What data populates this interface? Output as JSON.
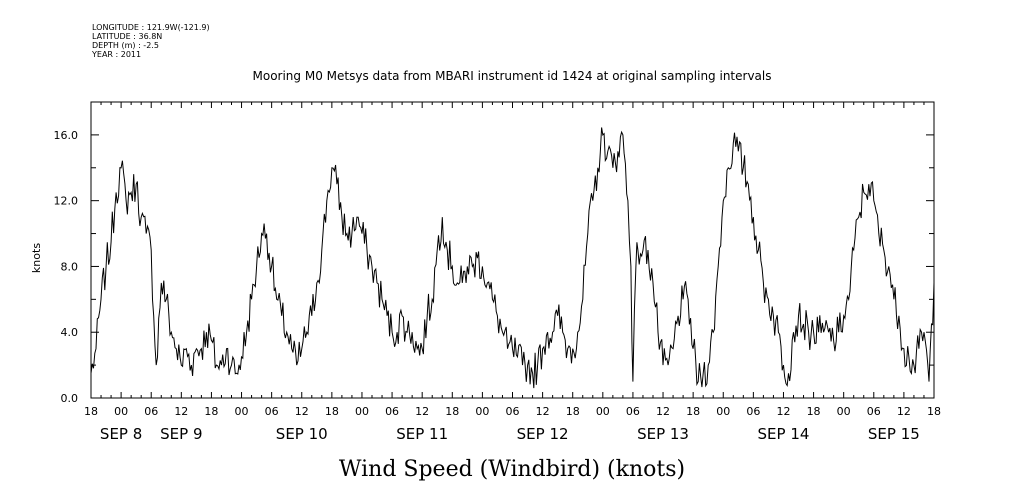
{
  "header": {
    "meta_lines": [
      "LONGITUDE : 121.9W(-121.9)",
      "LATITUDE : 36.8N",
      "DEPTH (m) : -2.5",
      "YEAR : 2011"
    ],
    "title": "Mooring M0 Metsys data from MBARI instrument id 1424 at original sampling intervals"
  },
  "chart_data": {
    "type": "line",
    "title": "Mooring M0 Metsys data from MBARI instrument id 1424 at original sampling intervals",
    "xlabel": "Wind Speed (Windbird) (knots)",
    "ylabel": "knots",
    "x_unit": "hours since SEP 7 18:00 (2011)",
    "xlim": [
      0,
      168
    ],
    "ylim": [
      0,
      18
    ],
    "y_ticks": [
      "0.0",
      "4.0",
      "8.0",
      "12.0",
      "16.0"
    ],
    "y_tick_values": [
      0,
      4,
      8,
      12,
      16
    ],
    "x_hour_labels": [
      "18",
      "00",
      "06",
      "12",
      "18",
      "00",
      "06",
      "12",
      "18",
      "00",
      "06",
      "12",
      "18",
      "00",
      "06",
      "12",
      "18",
      "00",
      "06",
      "12",
      "18",
      "00",
      "06",
      "12",
      "18",
      "00",
      "06",
      "12",
      "18"
    ],
    "x_day_labels": [
      {
        "text": "SEP  8",
        "hour": 6
      },
      {
        "text": "SEP  9",
        "hour": 18
      },
      {
        "text": "SEP 10",
        "hour": 42
      },
      {
        "text": "SEP 11",
        "hour": 66
      },
      {
        "text": "SEP 12",
        "hour": 90
      },
      {
        "text": "SEP 13",
        "hour": 114
      },
      {
        "text": "SEP 14",
        "hour": 138
      },
      {
        "text": "SEP 15",
        "hour": 160
      }
    ],
    "series": [
      {
        "anchors": [
          [
            0,
            1.5
          ],
          [
            1,
            3
          ],
          [
            2,
            6
          ],
          [
            3,
            8
          ],
          [
            4,
            9.5
          ],
          [
            5,
            12.5
          ],
          [
            6,
            14
          ],
          [
            7,
            12
          ],
          [
            8,
            12.5
          ],
          [
            9,
            13
          ],
          [
            10,
            11
          ],
          [
            11,
            10
          ],
          [
            12,
            9
          ],
          [
            12.5,
            5
          ],
          [
            13,
            2
          ],
          [
            14,
            7
          ],
          [
            15,
            6
          ],
          [
            16,
            4
          ],
          [
            17,
            3
          ],
          [
            18,
            2
          ],
          [
            19,
            3
          ],
          [
            20,
            2
          ],
          [
            21,
            3
          ],
          [
            22,
            3
          ],
          [
            23,
            4
          ],
          [
            24,
            3.5
          ],
          [
            25,
            2
          ],
          [
            26,
            2
          ],
          [
            27,
            3
          ],
          [
            28,
            2
          ],
          [
            29,
            1.5
          ],
          [
            30,
            2.5
          ],
          [
            31,
            4
          ],
          [
            32,
            6
          ],
          [
            33,
            8
          ],
          [
            34,
            10
          ],
          [
            35,
            10
          ],
          [
            36,
            8
          ],
          [
            37,
            6
          ],
          [
            38,
            5
          ],
          [
            39,
            4
          ],
          [
            40,
            3
          ],
          [
            41,
            2
          ],
          [
            42,
            3
          ],
          [
            43,
            4
          ],
          [
            44,
            5
          ],
          [
            45,
            7
          ],
          [
            46,
            9
          ],
          [
            47,
            12
          ],
          [
            48,
            14
          ],
          [
            49,
            13
          ],
          [
            50,
            11
          ],
          [
            51,
            10
          ],
          [
            52,
            10
          ],
          [
            53,
            11
          ],
          [
            54,
            10
          ],
          [
            55,
            9
          ],
          [
            56,
            8
          ],
          [
            57,
            7
          ],
          [
            58,
            6
          ],
          [
            59,
            5
          ],
          [
            60,
            4
          ],
          [
            61,
            4
          ],
          [
            62,
            5
          ],
          [
            63,
            4
          ],
          [
            64,
            4
          ],
          [
            65,
            3
          ],
          [
            66,
            3
          ],
          [
            67,
            5
          ],
          [
            68,
            6
          ],
          [
            69,
            9
          ],
          [
            70,
            11
          ],
          [
            71,
            9
          ],
          [
            72,
            8
          ],
          [
            73,
            7
          ],
          [
            74,
            7
          ],
          [
            75,
            8
          ],
          [
            76,
            8
          ],
          [
            77,
            8.5
          ],
          [
            78,
            8
          ],
          [
            79,
            7
          ],
          [
            80,
            6
          ],
          [
            81,
            5
          ],
          [
            82,
            4
          ],
          [
            83,
            3
          ],
          [
            84,
            3
          ],
          [
            85,
            2.5
          ],
          [
            86,
            2
          ],
          [
            87,
            2
          ],
          [
            88,
            1.5
          ],
          [
            89,
            2
          ],
          [
            90,
            3
          ],
          [
            91,
            4
          ],
          [
            92,
            4
          ],
          [
            93,
            5
          ],
          [
            94,
            4
          ],
          [
            95,
            3
          ],
          [
            96,
            3
          ],
          [
            97,
            4
          ],
          [
            98,
            6
          ],
          [
            99,
            10
          ],
          [
            100,
            12
          ],
          [
            101,
            14
          ],
          [
            102,
            16
          ],
          [
            103,
            15
          ],
          [
            104,
            14
          ],
          [
            105,
            15
          ],
          [
            106,
            16
          ],
          [
            107,
            12
          ],
          [
            107.6,
            8
          ],
          [
            108,
            1
          ],
          [
            108.6,
            8
          ],
          [
            109,
            9
          ],
          [
            110,
            9
          ],
          [
            111,
            9
          ],
          [
            112,
            7
          ],
          [
            113,
            4
          ],
          [
            114,
            2
          ],
          [
            115,
            2
          ],
          [
            116,
            3
          ],
          [
            117,
            5
          ],
          [
            118,
            6
          ],
          [
            119,
            6
          ],
          [
            120,
            3
          ],
          [
            121,
            1
          ],
          [
            122,
            1.5
          ],
          [
            123,
            2
          ],
          [
            124,
            4
          ],
          [
            125,
            8
          ],
          [
            126,
            12
          ],
          [
            127,
            14
          ],
          [
            128,
            15.5
          ],
          [
            129,
            15
          ],
          [
            130,
            14
          ],
          [
            131,
            13
          ],
          [
            132,
            11
          ],
          [
            133,
            9
          ],
          [
            134,
            7
          ],
          [
            135,
            6
          ],
          [
            136,
            5
          ],
          [
            137,
            4
          ],
          [
            138,
            2
          ],
          [
            139,
            1.5
          ],
          [
            140,
            4
          ],
          [
            141,
            5
          ],
          [
            142,
            4.5
          ],
          [
            143,
            4
          ],
          [
            144,
            4
          ],
          [
            145,
            4
          ],
          [
            146,
            4
          ],
          [
            147,
            4
          ],
          [
            148,
            3.5
          ],
          [
            149,
            4
          ],
          [
            150,
            5
          ],
          [
            151,
            6
          ],
          [
            152,
            9
          ],
          [
            153,
            11
          ],
          [
            154,
            12.5
          ],
          [
            155,
            13
          ],
          [
            156,
            12
          ],
          [
            157,
            10
          ],
          [
            158,
            9
          ],
          [
            159,
            8
          ],
          [
            160,
            6
          ],
          [
            161,
            5
          ],
          [
            162,
            3
          ],
          [
            163,
            2.5
          ],
          [
            164,
            2
          ],
          [
            165,
            3
          ],
          [
            166,
            4
          ],
          [
            167,
            1
          ],
          [
            168,
            7
          ]
        ]
      }
    ]
  }
}
